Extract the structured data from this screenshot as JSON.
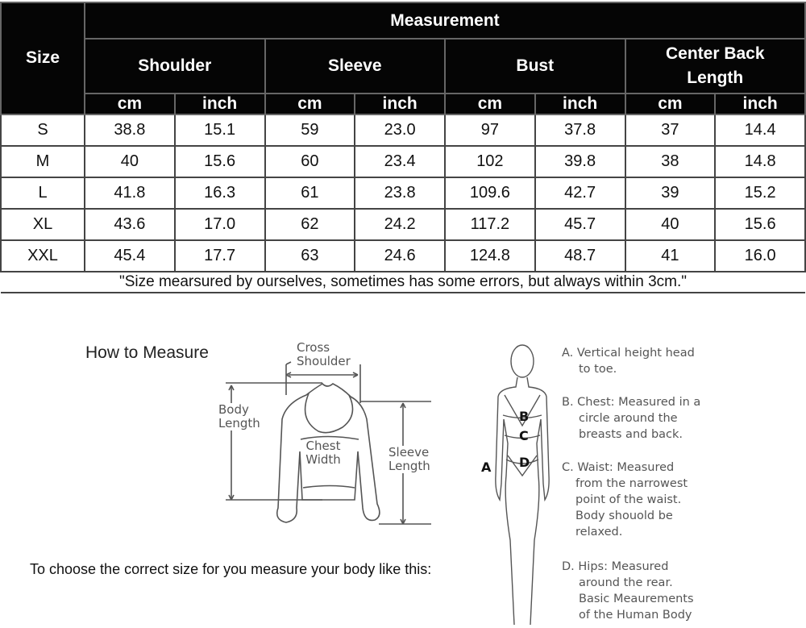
{
  "table": {
    "size_header": "Size",
    "measurement_header": "Measurement",
    "groups": [
      "Shoulder",
      "Sleeve",
      "Bust",
      "Center Back Length"
    ],
    "units": [
      "cm",
      "inch",
      "cm",
      "inch",
      "cm",
      "inch",
      "cm",
      "inch"
    ],
    "rows": [
      {
        "size": "S",
        "values": [
          "38.8",
          "15.1",
          "59",
          "23.0",
          "97",
          "37.8",
          "37",
          "14.4"
        ]
      },
      {
        "size": "M",
        "values": [
          "40",
          "15.6",
          "60",
          "23.4",
          "102",
          "39.8",
          "38",
          "14.8"
        ]
      },
      {
        "size": "L",
        "values": [
          "41.8",
          "16.3",
          "61",
          "23.8",
          "109.6",
          "42.7",
          "39",
          "15.2"
        ]
      },
      {
        "size": "XL",
        "values": [
          "43.6",
          "17.0",
          "62",
          "24.2",
          "117.2",
          "45.7",
          "40",
          "15.6"
        ]
      },
      {
        "size": "XXL",
        "values": [
          "45.4",
          "17.7",
          "63",
          "24.6",
          "124.8",
          "48.7",
          "41",
          "16.0"
        ]
      }
    ],
    "note": "\"Size mearsured by ourselves, sometimes has some errors, but always within 3cm.\""
  },
  "how_to": {
    "title": "How to Measure",
    "choose_text": "To choose the correct size for you measure your body like this:",
    "sweater_labels": {
      "cross_shoulder": "Cross Shoulder",
      "body_length": "Body Length",
      "chest_width": "Chest Width",
      "sleeve_length": "Sleeve Length"
    },
    "body_markers": [
      "A",
      "B",
      "C",
      "D"
    ],
    "legend": [
      {
        "head": "A. Vertical height head",
        "rest": "to toe."
      },
      {
        "head": "B. Chest: Measured in a",
        "rest": "circle around the breasts and back."
      },
      {
        "head": "C. Waist: Measured",
        "rest": "from the narrowest point of the waist. Body shouold be relaxed."
      },
      {
        "head": "D. Hips: Measured",
        "rest": "around the rear. Basic Meaurements of the Human Body"
      }
    ]
  }
}
